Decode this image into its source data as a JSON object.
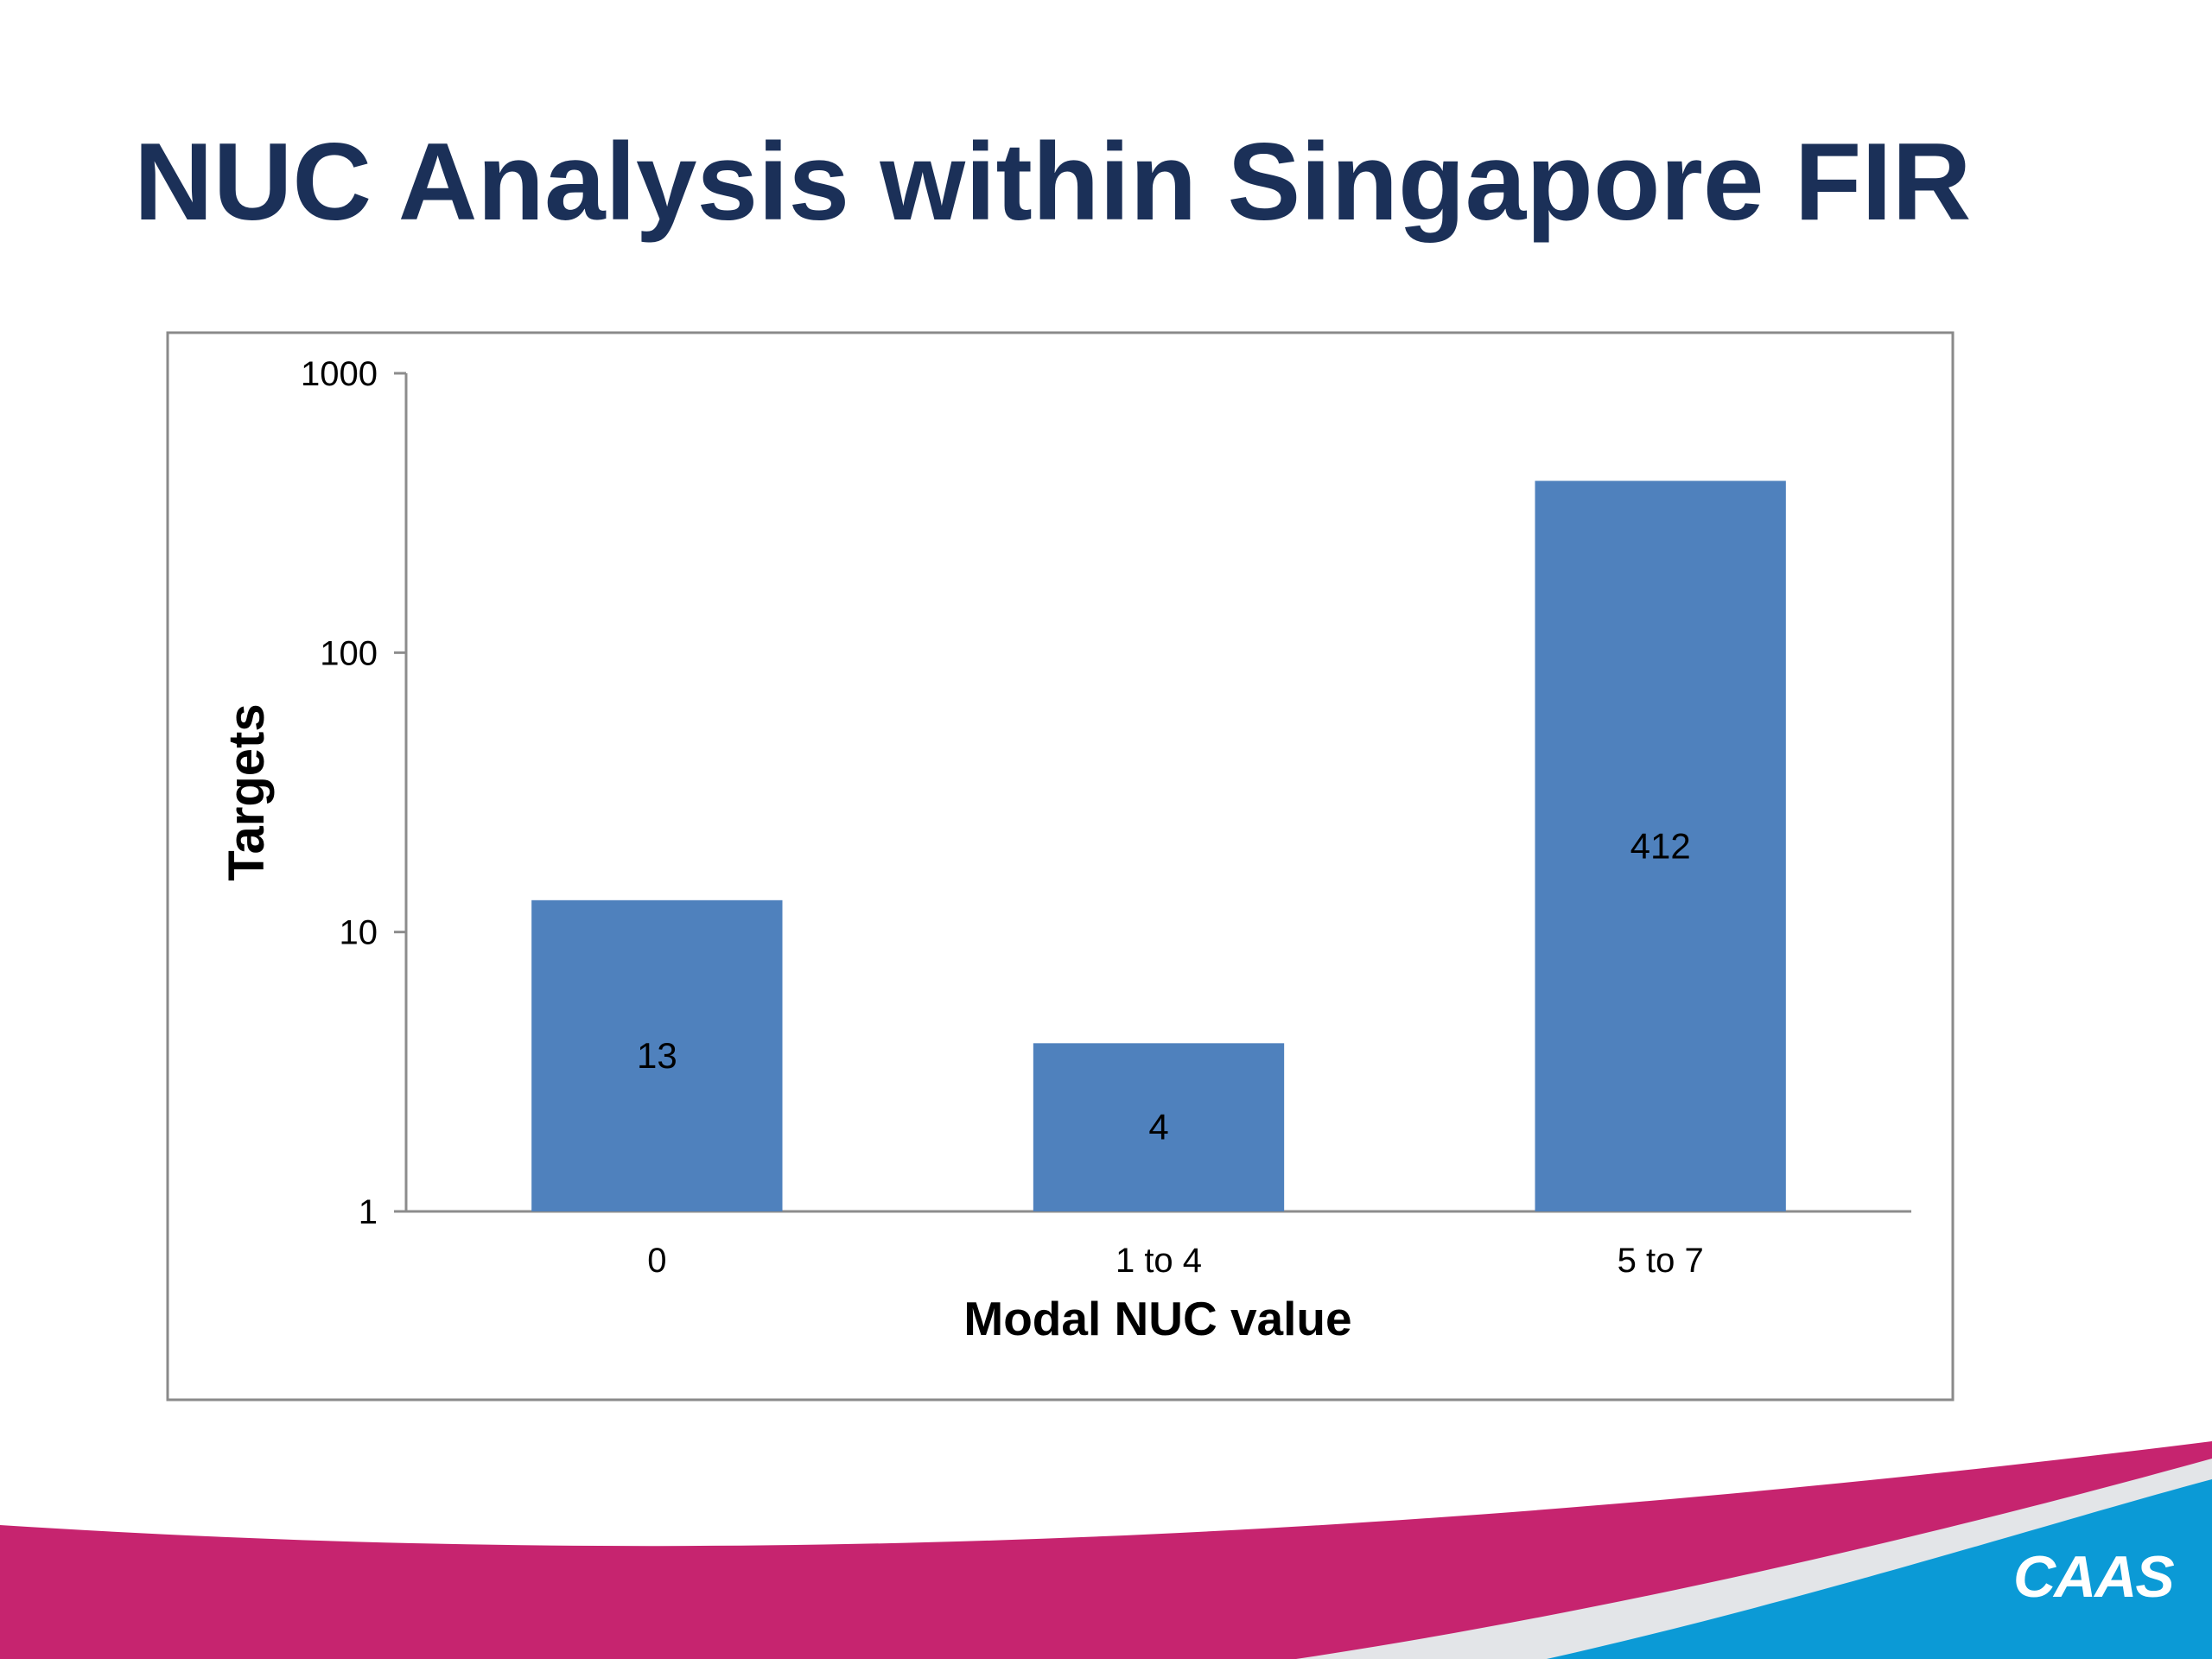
{
  "slide": {
    "title": "NUC Analysis within Singapore FIR",
    "logo_text": "CAAS"
  },
  "colors": {
    "title": "#1b3058",
    "bar": "#4f81bd",
    "magenta_band": "#c6246f",
    "blue_band": "#0b9ad6",
    "grey_band": "#e3e5e8"
  },
  "chart_data": {
    "type": "bar",
    "categories": [
      "0",
      "1 to 4",
      "5 to 7"
    ],
    "values": [
      13,
      4,
      412
    ],
    "data_labels": [
      "13",
      "4",
      "412"
    ],
    "xlabel": "Modal NUC value",
    "ylabel": "Targets",
    "yscale": "log",
    "ylim": [
      1,
      1000
    ],
    "yticks": [
      1,
      10,
      100,
      1000
    ],
    "ytick_labels": [
      "1",
      "10",
      "100",
      "1000"
    ],
    "grid": false,
    "legend": "none"
  }
}
